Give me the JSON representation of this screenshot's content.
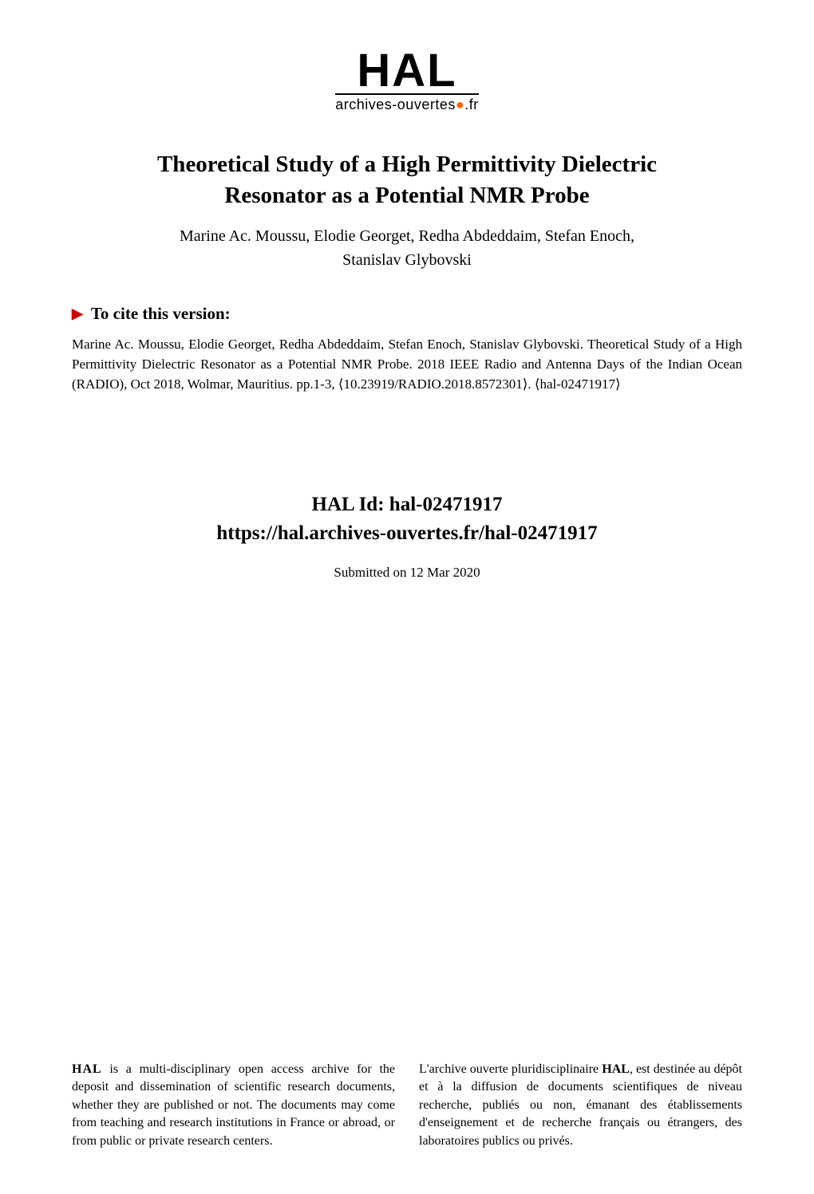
{
  "logo": {
    "text": "HAL",
    "subtitle": "archives-ouvertes",
    "suffix": ".fr"
  },
  "paper": {
    "title_line1": "Theoretical Study of a High Permittivity Dielectric",
    "title_line2": "Resonator as a Potential NMR Probe",
    "authors_line1": "Marine Ac. Moussu, Elodie Georget, Redha Abdeddaim, Stefan Enoch,",
    "authors_line2": "Stanislav Glybovski"
  },
  "cite": {
    "header": "To cite this version:",
    "body": "Marine Ac. Moussu, Elodie Georget, Redha Abdeddaim, Stefan Enoch, Stanislav Glybovski. Theoretical Study of a High Permittivity Dielectric Resonator as a Potential NMR Probe. 2018 IEEE Radio and Antenna Days of the Indian Ocean (RADIO), Oct 2018, Wolmar, Mauritius. pp.1-3, ⟨10.23919/RADIO.2018.8572301⟩. ⟨hal-02471917⟩"
  },
  "hal": {
    "id_label": "HAL Id: hal-02471917",
    "url": "https://hal.archives-ouvertes.fr/hal-02471917",
    "submitted": "Submitted on 12 Mar 2020"
  },
  "footer": {
    "left": "HAL is a multi-disciplinary open access archive for the deposit and dissemination of scientific research documents, whether they are published or not. The documents may come from teaching and research institutions in France or abroad, or from public or private research centers.",
    "right": "L'archive ouverte pluridisciplinaire HAL, est destinée au dépôt et à la diffusion de documents scientifiques de niveau recherche, publiés ou non, émanant des établissements d'enseignement et de recherche français ou étrangers, des laboratoires publics ou privés."
  },
  "colors": {
    "text": "#000000",
    "background": "#ffffff",
    "accent_red": "#cc0000"
  },
  "typography": {
    "title_fontsize": 29,
    "authors_fontsize": 20,
    "cite_header_fontsize": 21,
    "cite_body_fontsize": 17,
    "hal_id_fontsize": 25,
    "footer_fontsize": 16,
    "font_family": "Georgia, Times New Roman, serif"
  }
}
